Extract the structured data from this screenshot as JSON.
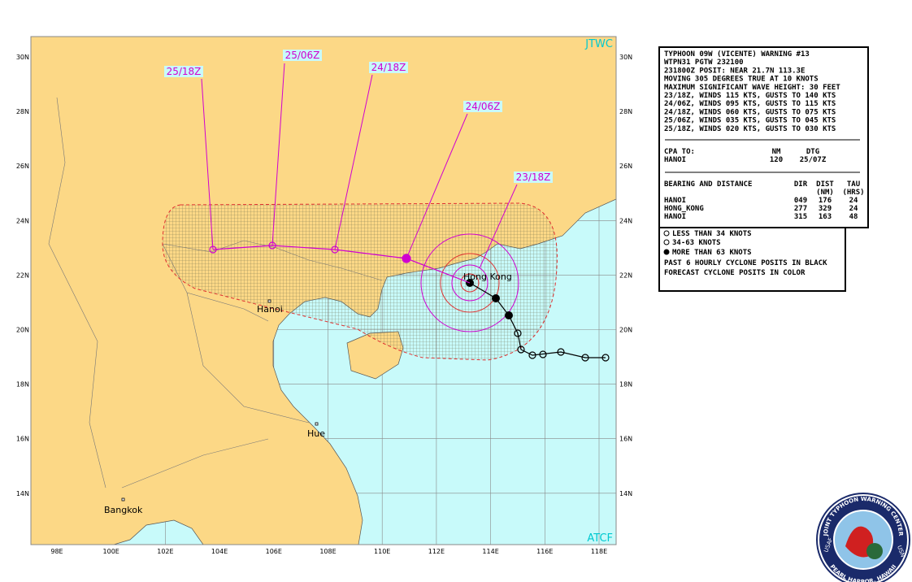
{
  "map": {
    "source_labels": [
      "JTWC",
      "ATCF"
    ],
    "latitude_labels": [
      "30N",
      "28N",
      "26N",
      "24N",
      "22N",
      "20N",
      "18N",
      "16N",
      "14N"
    ],
    "longitude_labels": [
      "98E",
      "100E",
      "102E",
      "104E",
      "106E",
      "108E",
      "110E",
      "112E",
      "114E",
      "116E",
      "118E"
    ],
    "forecast_labels": [
      "25/18Z",
      "25/06Z",
      "24/18Z",
      "24/06Z",
      "23/18Z"
    ],
    "places": [
      "Hong Kong",
      "Hanoi",
      "Hue",
      "Bangkok"
    ]
  },
  "warning": {
    "lines": [
      "TYPHOON 09W (VICENTE) WARNING #13",
      "WTPN31 PGTW 232100",
      "231800Z POSIT: NEAR 21.7N 113.3E",
      "MOVING 305 DEGREES TRUE AT 10 KNOTS",
      "MAXIMUM SIGNIFICANT WAVE HEIGHT: 30 FEET",
      "23/18Z, WINDS 115 KTS, GUSTS TO 140 KTS",
      "24/06Z, WINDS 095 KTS, GUSTS TO 115 KTS",
      "24/18Z, WINDS 060 KTS, GUSTS TO 075 KTS",
      "25/06Z, WINDS 035 KTS, GUSTS TO 045 KTS",
      "25/18Z, WINDS 020 KTS, GUSTS TO 030 KTS"
    ],
    "cpa_header": [
      "CPA TO:",
      "NM",
      "DTG"
    ],
    "cpa_row": [
      "HANOI",
      "120",
      "25/07Z"
    ],
    "bearing_header": [
      "BEARING AND DISTANCE",
      "DIR",
      "DIST",
      "TAU"
    ],
    "bearing_units": [
      "(NM)",
      "(HRS)"
    ],
    "bearing_rows": [
      [
        "HANOI",
        "049",
        "176",
        "24"
      ],
      [
        "HONG_KONG",
        "277",
        "329",
        "24"
      ],
      [
        "HANOI",
        "315",
        "163",
        "48"
      ]
    ]
  },
  "legend": [
    "LESS THAN 34 KNOTS",
    "34-63 KNOTS",
    "MORE THAN 63 KNOTS",
    "PAST 6 HOURLY CYCLONE POSITS IN BLACK",
    "FORECAST CYCLONE POSITS IN COLOR"
  ],
  "logo": {
    "ring_top": "JOINT TYPHOON WARNING CENTER",
    "ring_bottom": "PEARL HARBOR, HAWAII",
    "left": "USAF",
    "right": "USN"
  }
}
